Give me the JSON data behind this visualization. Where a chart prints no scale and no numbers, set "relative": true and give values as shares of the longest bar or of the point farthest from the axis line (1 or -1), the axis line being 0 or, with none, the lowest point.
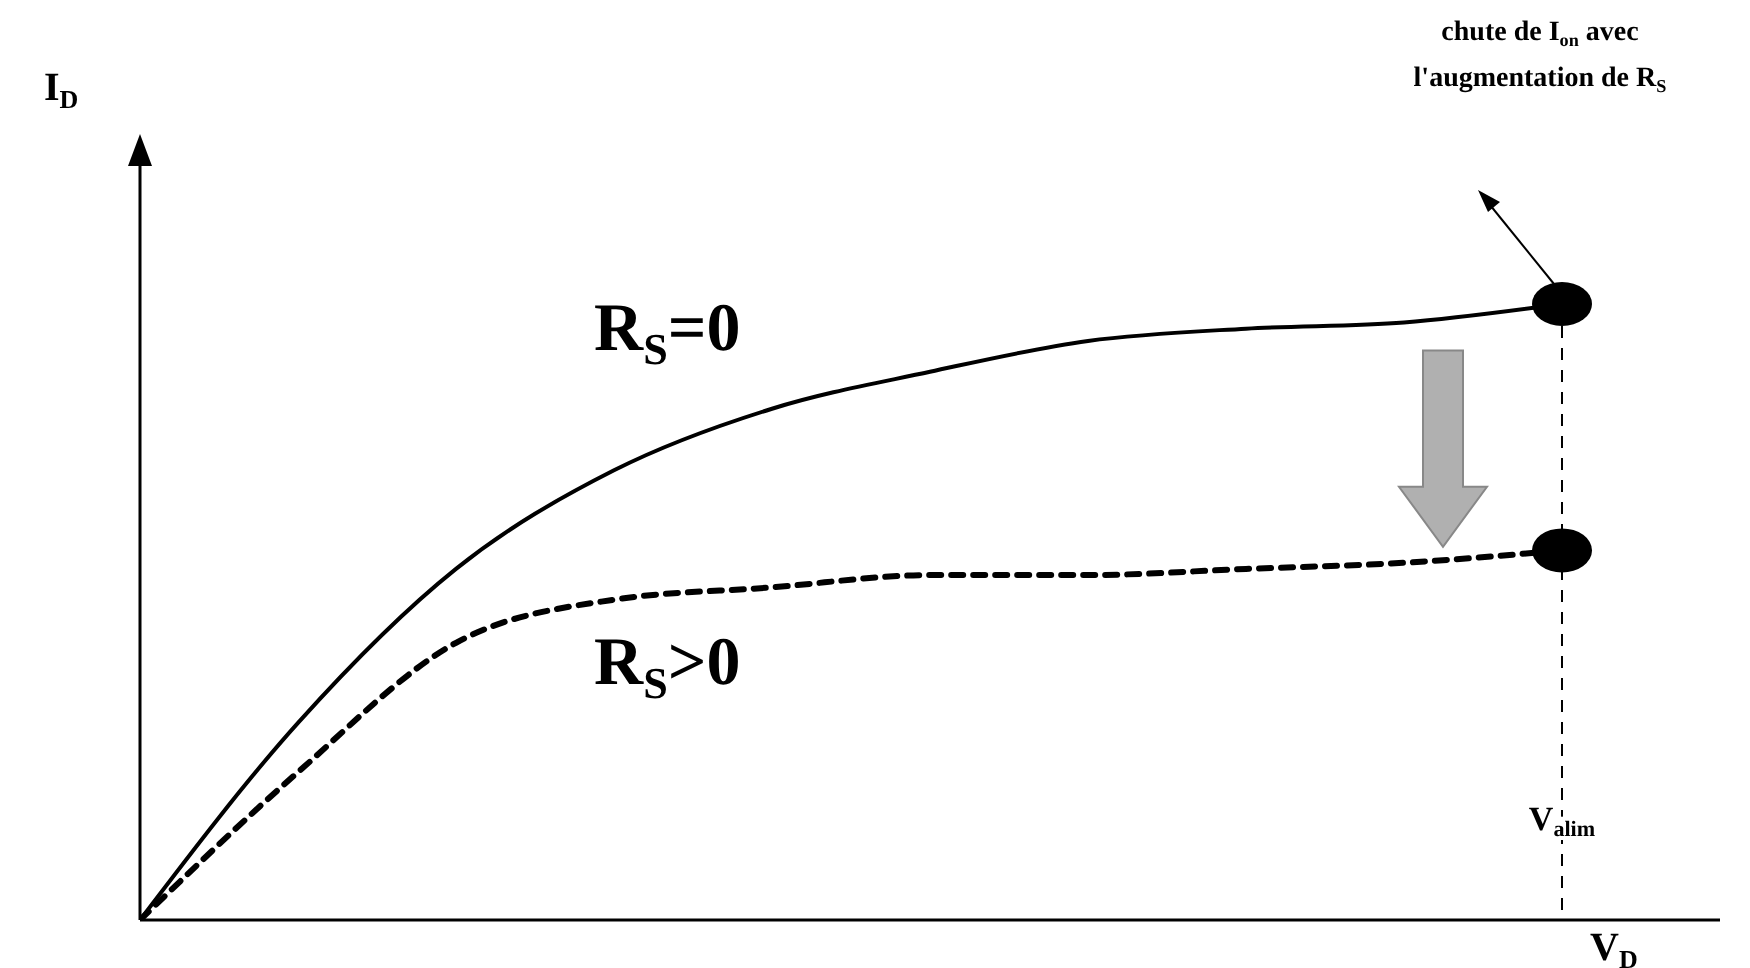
{
  "chart_data": {
    "type": "line",
    "relative": true,
    "xlabel": "V$_{D}$",
    "ylabel": "I$_{D}$",
    "categories": [
      null,
      null,
      null,
      null,
      null,
      null,
      null,
      null,
      null,
      null,
      null
    ],
    "series": [
      {
        "name": "R$_{S}$=0",
        "color": "#000000",
        "line_style": "solid",
        "values": [
          0,
          0.32,
          0.57,
          0.73,
          0.83,
          0.89,
          0.94,
          0.96,
          0.97,
          1.0,
          null
        ]
      },
      {
        "name": "R$_{S}$>0",
        "color": "#000000",
        "line_style": "dashed",
        "values": [
          0,
          0.24,
          0.45,
          0.52,
          0.54,
          0.56,
          0.56,
          0.57,
          0.58,
          0.6,
          null
        ]
      }
    ],
    "ref_lines": [
      {
        "axis": "x",
        "label": "V$_{alim}$",
        "line_style": "dashed"
      }
    ],
    "annotations": [
      "chute de I$_{on}$ avec l'augmentation de R$_{S}$"
    ]
  }
}
